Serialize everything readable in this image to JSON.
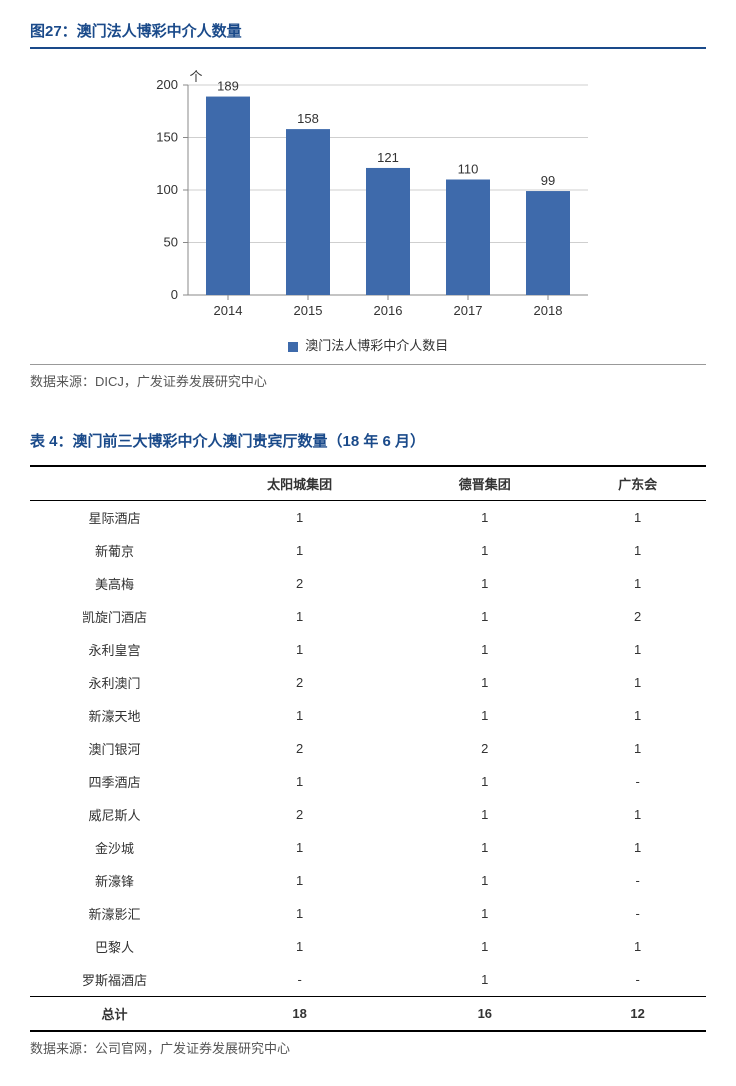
{
  "figure": {
    "title": "图27：澳门法人博彩中介人数量",
    "chart": {
      "type": "bar",
      "y_axis_label": "个",
      "categories": [
        "2014",
        "2015",
        "2016",
        "2017",
        "2018"
      ],
      "values": [
        189,
        158,
        121,
        110,
        99
      ],
      "bar_color": "#3e6aab",
      "ylim": [
        0,
        200
      ],
      "ytick_step": 50,
      "yticks": [
        0,
        50,
        100,
        150,
        200
      ],
      "axis_color": "#888888",
      "grid_color": "#cfcfcf",
      "label_fontsize": 13,
      "value_fontsize": 13,
      "background_color": "#ffffff",
      "legend_label": "澳门法人博彩中介人数目"
    },
    "source": "数据来源：DICJ，广发证券发展研究中心"
  },
  "table": {
    "title": "表 4：澳门前三大博彩中介人澳门贵宾厅数量（18 年 6 月）",
    "columns": [
      "",
      "太阳城集团",
      "德晋集团",
      "广东会"
    ],
    "rows": [
      [
        "星际酒店",
        "1",
        "1",
        "1"
      ],
      [
        "新葡京",
        "1",
        "1",
        "1"
      ],
      [
        "美高梅",
        "2",
        "1",
        "1"
      ],
      [
        "凯旋门酒店",
        "1",
        "1",
        "2"
      ],
      [
        "永利皇宫",
        "1",
        "1",
        "1"
      ],
      [
        "永利澳门",
        "2",
        "1",
        "1"
      ],
      [
        "新濠天地",
        "1",
        "1",
        "1"
      ],
      [
        "澳门银河",
        "2",
        "2",
        "1"
      ],
      [
        "四季酒店",
        "1",
        "1",
        "-"
      ],
      [
        "威尼斯人",
        "2",
        "1",
        "1"
      ],
      [
        "金沙城",
        "1",
        "1",
        "1"
      ],
      [
        "新濠锋",
        "1",
        "1",
        "-"
      ],
      [
        "新濠影汇",
        "1",
        "1",
        "-"
      ],
      [
        "巴黎人",
        "1",
        "1",
        "1"
      ],
      [
        "罗斯福酒店",
        "-",
        "1",
        "-"
      ]
    ],
    "total_row": [
      "总计",
      "18",
      "16",
      "12"
    ],
    "source": "数据来源：公司官网，广发证券发展研究中心"
  }
}
